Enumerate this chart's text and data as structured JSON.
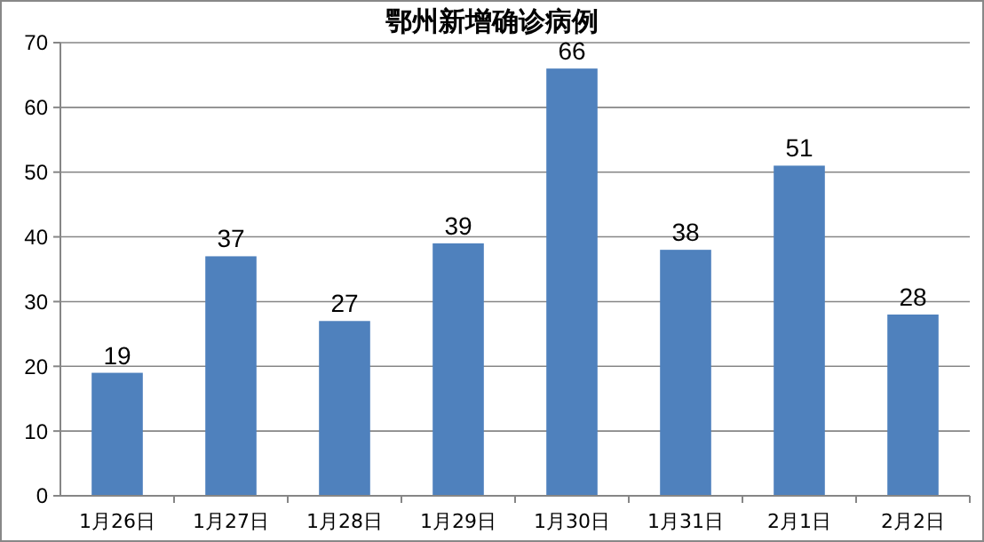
{
  "chart_data": {
    "type": "bar",
    "title": "鄂州新增确诊病例",
    "categories": [
      "1月26日",
      "1月27日",
      "1月28日",
      "1月29日",
      "1月30日",
      "1月31日",
      "2月1日",
      "2月2日"
    ],
    "values": [
      19,
      37,
      27,
      39,
      66,
      38,
      51,
      28
    ],
    "color": "#4f81bd",
    "ylim": [
      0,
      70
    ],
    "yticks": [
      0,
      10,
      20,
      30,
      40,
      50,
      60,
      70
    ],
    "grid": "y",
    "data_labels": true
  }
}
